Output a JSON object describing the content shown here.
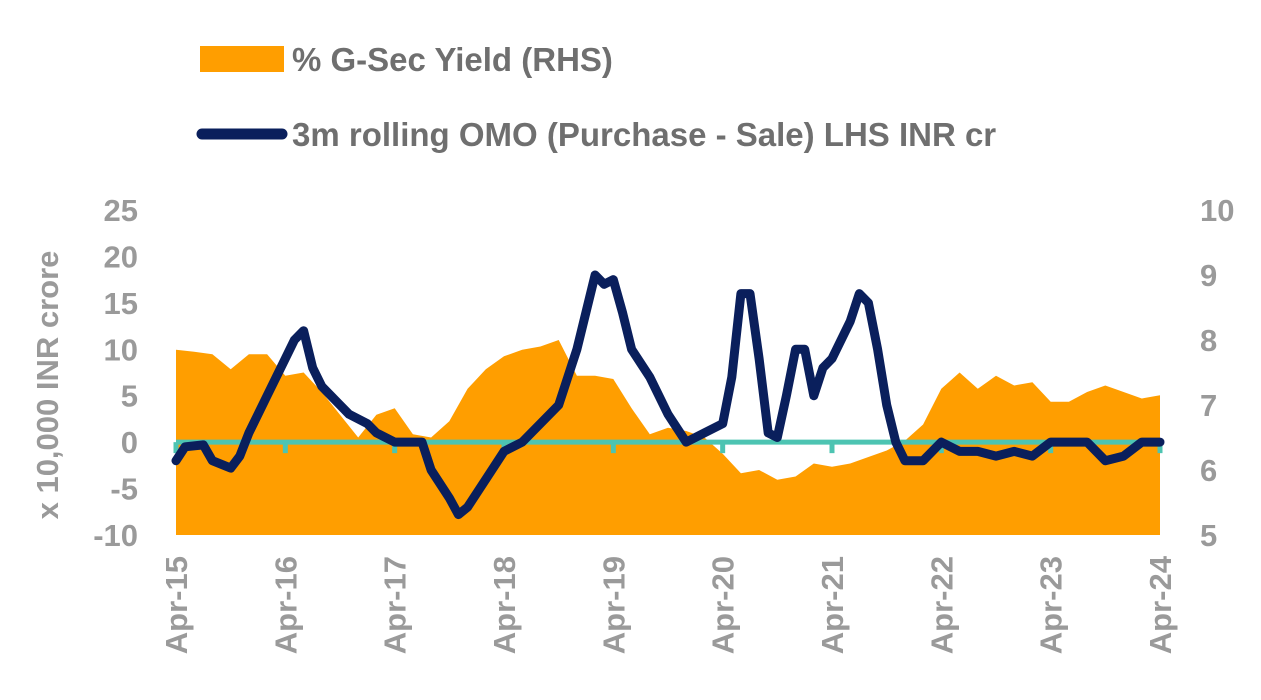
{
  "chart_data": {
    "type": "line",
    "title": "",
    "legend": {
      "placement": "top",
      "entries": [
        {
          "label": "% G-Sec Yield (RHS)",
          "kind": "area",
          "color": "#FF9E00"
        },
        {
          "label": "3m rolling OMO (Purchase - Sale) LHS INR cr",
          "kind": "line",
          "color": "#0A1F5C"
        }
      ]
    },
    "ylabel": "x 10,000 INR crore",
    "y_left": {
      "min": -10,
      "max": 25,
      "ticks": [
        "-10",
        "-5",
        "0",
        "5",
        "10",
        "15",
        "20",
        "25"
      ]
    },
    "y_right": {
      "min": 5,
      "max": 10,
      "ticks": [
        "5",
        "6",
        "7",
        "8",
        "9",
        "10"
      ]
    },
    "x": {
      "start": "2015-04",
      "end": "2024-04",
      "tick_labels": [
        "Apr-15",
        "Apr-16",
        "Apr-17",
        "Apr-18",
        "Apr-19",
        "Apr-20",
        "Apr-21",
        "Apr-22",
        "Apr-23",
        "Apr-24"
      ]
    },
    "zero_line_color": "#4DC4B2",
    "grid": false,
    "series": [
      {
        "name": "% G-Sec Yield (RHS)",
        "axis": "right",
        "type": "area",
        "color": "#FF9E00",
        "points": [
          [
            "2015-04",
            7.85
          ],
          [
            "2015-06",
            7.82
          ],
          [
            "2015-08",
            7.78
          ],
          [
            "2015-10",
            7.55
          ],
          [
            "2015-12",
            7.78
          ],
          [
            "2016-02",
            7.78
          ],
          [
            "2016-04",
            7.45
          ],
          [
            "2016-06",
            7.5
          ],
          [
            "2016-08",
            7.2
          ],
          [
            "2016-10",
            6.85
          ],
          [
            "2016-12",
            6.5
          ],
          [
            "2017-02",
            6.85
          ],
          [
            "2017-04",
            6.95
          ],
          [
            "2017-06",
            6.55
          ],
          [
            "2017-08",
            6.5
          ],
          [
            "2017-10",
            6.75
          ],
          [
            "2017-12",
            7.25
          ],
          [
            "2018-02",
            7.55
          ],
          [
            "2018-04",
            7.75
          ],
          [
            "2018-06",
            7.85
          ],
          [
            "2018-08",
            7.9
          ],
          [
            "2018-10",
            8.0
          ],
          [
            "2018-12",
            7.45
          ],
          [
            "2019-02",
            7.45
          ],
          [
            "2019-04",
            7.4
          ],
          [
            "2019-06",
            6.95
          ],
          [
            "2019-08",
            6.55
          ],
          [
            "2019-10",
            6.65
          ],
          [
            "2019-12",
            6.6
          ],
          [
            "2020-02",
            6.5
          ],
          [
            "2020-04",
            6.25
          ],
          [
            "2020-06",
            5.95
          ],
          [
            "2020-08",
            6.0
          ],
          [
            "2020-10",
            5.85
          ],
          [
            "2020-12",
            5.9
          ],
          [
            "2021-02",
            6.1
          ],
          [
            "2021-04",
            6.05
          ],
          [
            "2021-06",
            6.1
          ],
          [
            "2021-08",
            6.2
          ],
          [
            "2021-10",
            6.3
          ],
          [
            "2021-12",
            6.45
          ],
          [
            "2022-02",
            6.7
          ],
          [
            "2022-04",
            7.25
          ],
          [
            "2022-06",
            7.5
          ],
          [
            "2022-08",
            7.25
          ],
          [
            "2022-10",
            7.45
          ],
          [
            "2022-12",
            7.3
          ],
          [
            "2023-02",
            7.35
          ],
          [
            "2023-04",
            7.05
          ],
          [
            "2023-06",
            7.05
          ],
          [
            "2023-08",
            7.2
          ],
          [
            "2023-10",
            7.3
          ],
          [
            "2023-12",
            7.2
          ],
          [
            "2024-02",
            7.1
          ],
          [
            "2024-04",
            7.15
          ]
        ]
      },
      {
        "name": "3m rolling OMO (Purchase - Sale) LHS INR cr",
        "axis": "left",
        "type": "line",
        "color": "#0A1F5C",
        "points": [
          [
            "2015-04",
            -2
          ],
          [
            "2015-05",
            -0.5
          ],
          [
            "2015-07",
            -0.3
          ],
          [
            "2015-08",
            -2
          ],
          [
            "2015-10",
            -2.8
          ],
          [
            "2015-11",
            -1.5
          ],
          [
            "2015-12",
            1
          ],
          [
            "2016-02",
            5
          ],
          [
            "2016-04",
            9
          ],
          [
            "2016-05",
            11
          ],
          [
            "2016-06",
            12
          ],
          [
            "2016-07",
            8
          ],
          [
            "2016-08",
            6
          ],
          [
            "2016-10",
            4
          ],
          [
            "2016-11",
            3
          ],
          [
            "2017-01",
            2
          ],
          [
            "2017-02",
            1
          ],
          [
            "2017-04",
            0
          ],
          [
            "2017-07",
            0
          ],
          [
            "2017-08",
            -3
          ],
          [
            "2017-10",
            -6
          ],
          [
            "2017-11",
            -7.8
          ],
          [
            "2017-12",
            -7
          ],
          [
            "2018-02",
            -4
          ],
          [
            "2018-04",
            -1
          ],
          [
            "2018-06",
            0
          ],
          [
            "2018-08",
            2
          ],
          [
            "2018-10",
            4
          ],
          [
            "2018-12",
            10
          ],
          [
            "2019-02",
            18
          ],
          [
            "2019-03",
            17
          ],
          [
            "2019-04",
            17.5
          ],
          [
            "2019-05",
            14
          ],
          [
            "2019-06",
            10
          ],
          [
            "2019-08",
            7
          ],
          [
            "2019-10",
            3
          ],
          [
            "2019-12",
            0
          ],
          [
            "2020-02",
            1
          ],
          [
            "2020-04",
            2
          ],
          [
            "2020-05",
            7
          ],
          [
            "2020-06",
            16
          ],
          [
            "2020-07",
            16
          ],
          [
            "2020-08",
            9
          ],
          [
            "2020-09",
            1
          ],
          [
            "2020-10",
            0.5
          ],
          [
            "2020-11",
            5
          ],
          [
            "2020-12",
            10
          ],
          [
            "2021-01",
            10
          ],
          [
            "2021-02",
            5
          ],
          [
            "2021-03",
            8
          ],
          [
            "2021-04",
            9
          ],
          [
            "2021-05",
            11
          ],
          [
            "2021-06",
            13
          ],
          [
            "2021-07",
            16
          ],
          [
            "2021-08",
            15
          ],
          [
            "2021-09",
            10
          ],
          [
            "2021-10",
            4
          ],
          [
            "2021-11",
            0
          ],
          [
            "2021-12",
            -2
          ],
          [
            "2022-02",
            -2
          ],
          [
            "2022-04",
            0
          ],
          [
            "2022-06",
            -1
          ],
          [
            "2022-08",
            -1
          ],
          [
            "2022-10",
            -1.5
          ],
          [
            "2022-12",
            -1
          ],
          [
            "2023-02",
            -1.5
          ],
          [
            "2023-04",
            0
          ],
          [
            "2023-08",
            0
          ],
          [
            "2023-10",
            -2
          ],
          [
            "2023-12",
            -1.5
          ],
          [
            "2024-02",
            0
          ],
          [
            "2024-04",
            0
          ]
        ]
      }
    ]
  }
}
